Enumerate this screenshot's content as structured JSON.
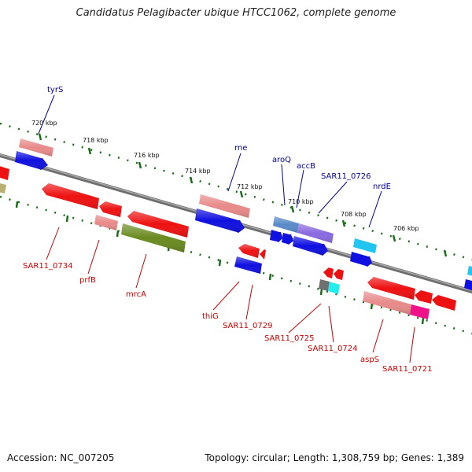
{
  "title": "Candidatus Pelagibacter ubique HTCC1062, complete genome",
  "footer": {
    "accession": "Accession: NC_007205",
    "topology": "Topology: circular; Length: 1,308,759 bp; Genes: 1,389"
  },
  "colors": {
    "backbone": "#7a7a7a",
    "label_above": "#000099",
    "label_below": "#cc0000",
    "tick": "#1a6e1a"
  },
  "kbp_ticks": [
    "720 kbp",
    "718 kbp",
    "716 kbp",
    "714 kbp",
    "712 kbp",
    "710 kbp",
    "708 kbp",
    "706 kbp"
  ],
  "labels_above": [
    "tyrS",
    "rne",
    "aroQ",
    "accB",
    "SAR11_0726",
    "nrdE"
  ],
  "labels_below": [
    "SAR11_0734",
    "prfB",
    "mrcA",
    "thiG",
    "SAR11_0729",
    "SAR11_0725",
    "SAR11_0724",
    "aspS",
    "SAR11_0721"
  ]
}
